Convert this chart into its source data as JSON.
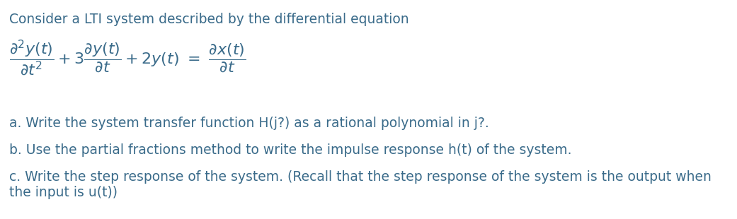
{
  "background_color": "#ffffff",
  "text_color": "#3a6b8a",
  "fig_width": 10.41,
  "fig_height": 3.1,
  "dpi": 100,
  "intro_text": "Consider a LTI system described by the differential equation",
  "intro_fontsize": 13.5,
  "equation_fontsize": 16,
  "part_fontsize": 13.5,
  "part_a_text": "a. Write the system transfer function H(j?) as a rational polynomial in j?.",
  "part_b_text": "b. Use the partial fractions method to write the impulse response h(t) of the system.",
  "part_c_text": "c. Write the step response of the system. (Recall that the step response of the system is the output when\nthe input is u(t))"
}
